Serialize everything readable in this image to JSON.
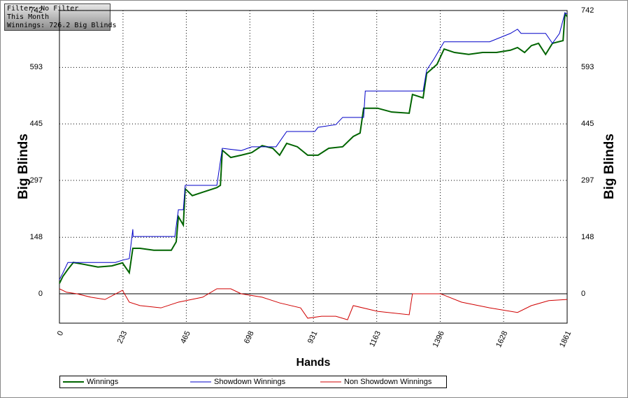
{
  "info": {
    "filter": "Filter: No Filter",
    "period": "This Month",
    "winnings": "Winnings: 726.2 Big Blinds"
  },
  "chart_data": {
    "type": "line",
    "y_label": "Big Blinds",
    "y2_label": "Big Blinds",
    "x_label": "Hands",
    "xlim": [
      0,
      1861
    ],
    "xticks": [
      0,
      233,
      465,
      698,
      931,
      1163,
      1396,
      1628,
      1861
    ],
    "ylim": [
      -77,
      742
    ],
    "yticks": [
      0,
      148,
      297,
      445,
      593,
      742
    ],
    "y2lim": [
      -77,
      742
    ],
    "y2ticks": [
      0,
      148,
      297,
      445,
      593,
      742
    ],
    "grid": true,
    "legend": "bottom",
    "series": [
      {
        "name": "Winnings",
        "color": "#006400",
        "x": [
          0,
          13,
          31,
          51,
          90,
          141,
          192,
          231,
          256,
          269,
          295,
          346,
          410,
          428,
          436,
          454,
          461,
          487,
          525,
          577,
          590,
          597,
          628,
          666,
          705,
          743,
          782,
          807,
          833,
          872,
          910,
          948,
          987,
          1038,
          1077,
          1102,
          1115,
          1166,
          1218,
          1282,
          1294,
          1333,
          1346,
          1384,
          1410,
          1448,
          1500,
          1551,
          1602,
          1653,
          1679,
          1705,
          1730,
          1756,
          1782,
          1807,
          1846,
          1853,
          1861
        ],
        "values": [
          27,
          46,
          64,
          82,
          77,
          70,
          73,
          81,
          55,
          119,
          119,
          114,
          114,
          136,
          202,
          180,
          275,
          257,
          266,
          278,
          284,
          376,
          357,
          363,
          370,
          388,
          381,
          363,
          394,
          385,
          363,
          363,
          381,
          385,
          412,
          421,
          486,
          486,
          476,
          473,
          522,
          513,
          577,
          601,
          641,
          632,
          627,
          632,
          632,
          638,
          645,
          632,
          650,
          656,
          627,
          656,
          663,
          733,
          726
        ]
      },
      {
        "name": "Showdown Winnings",
        "color": "#0000c8",
        "x": [
          0,
          13,
          31,
          51,
          205,
          231,
          256,
          269,
          270,
          423,
          436,
          454,
          461,
          577,
          597,
          666,
          705,
          794,
          833,
          936,
          948,
          1013,
          1038,
          1115,
          1121,
          1333,
          1346,
          1372,
          1410,
          1577,
          1653,
          1679,
          1692,
          1782,
          1807,
          1833,
          1853,
          1861
        ],
        "values": [
          37,
          55,
          82,
          82,
          82,
          88,
          92,
          169,
          150,
          150,
          220,
          220,
          284,
          284,
          381,
          375,
          385,
          385,
          425,
          425,
          436,
          443,
          462,
          462,
          531,
          531,
          586,
          614,
          660,
          660,
          682,
          693,
          682,
          682,
          656,
          682,
          736,
          733
        ]
      },
      {
        "name": "Non Showdown Winnings",
        "color": "#d00000",
        "x": [
          0,
          26,
          64,
          115,
          167,
          231,
          256,
          295,
          372,
          436,
          525,
          577,
          628,
          666,
          743,
          807,
          884,
          910,
          961,
          1013,
          1056,
          1077,
          1166,
          1282,
          1294,
          1397,
          1474,
          1577,
          1679,
          1730,
          1794,
          1861
        ],
        "values": [
          13,
          4,
          0,
          -9,
          -15,
          9,
          -22,
          -31,
          -37,
          -22,
          -9,
          13,
          13,
          0,
          -9,
          -24,
          -37,
          -64,
          -59,
          -59,
          -68,
          -31,
          -46,
          -55,
          0,
          0,
          -22,
          -37,
          -49,
          -31,
          -18,
          -15
        ]
      }
    ]
  }
}
